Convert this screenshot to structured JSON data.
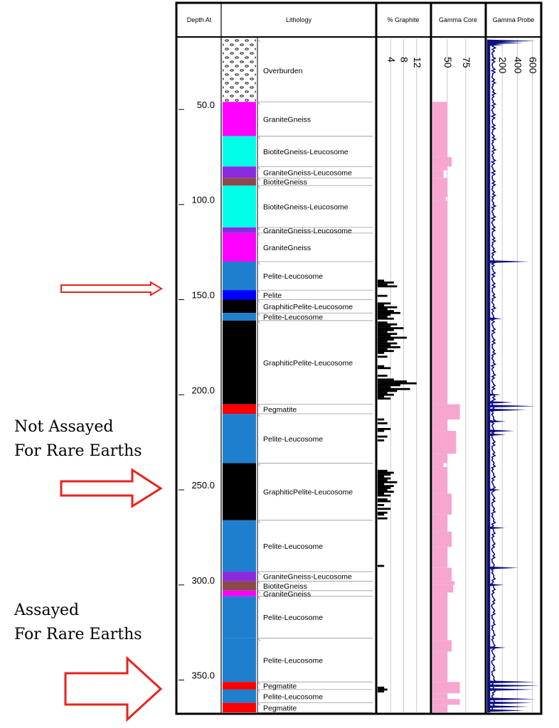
{
  "headers": {
    "depth": "Depth At",
    "lithology": "Lithology",
    "graphite": "% Graphite",
    "gamma_core": "Gamma Core",
    "gamma_probe": "Gamma Probe"
  },
  "annotations": {
    "not_assayed": "Not Assayed\nFor Rare Earths",
    "assayed": "Assayed\nFor Rare Earths"
  },
  "chart_data": {
    "type": "well-log",
    "depth_axis": {
      "range": [
        13,
        367
      ],
      "ticks": [
        50,
        100,
        150,
        200,
        250,
        300,
        350
      ],
      "labels": [
        "50.0",
        "100.0",
        "150.0",
        "200.0",
        "250.0",
        "300.0",
        "350.0"
      ]
    },
    "lithology": [
      {
        "top": 13,
        "base": 46,
        "name": "Overburden",
        "color": "pattern-ovals"
      },
      {
        "top": 46,
        "base": 64,
        "name": "GraniteGneiss",
        "color": "#ff00ff"
      },
      {
        "top": 64,
        "base": 80,
        "name": "BiotiteGneiss-Leucosome",
        "color": "#00ffe6"
      },
      {
        "top": 80,
        "base": 86,
        "name": "GraniteGneiss-Leucosome",
        "color": "#8a2be2"
      },
      {
        "top": 86,
        "base": 90,
        "name": "BiotiteGneiss",
        "color": "#8b4a4a"
      },
      {
        "top": 90,
        "base": 112,
        "name": "BiotiteGneiss-Leucosome",
        "color": "#00ffe6"
      },
      {
        "top": 112,
        "base": 115,
        "name": "GraniteGneiss-Leucosome",
        "color": "#8a2be2"
      },
      {
        "top": 115,
        "base": 130,
        "name": "GraniteGneiss",
        "color": "#ff00ff"
      },
      {
        "top": 130,
        "base": 145,
        "name": "Pelite-Leucosome",
        "color": "#1e7fcf"
      },
      {
        "top": 145,
        "base": 150,
        "name": "Pelite",
        "color": "#0000ff"
      },
      {
        "top": 150,
        "base": 157,
        "name": "GraphiticPelite-Leucosome",
        "color": "#000000"
      },
      {
        "top": 157,
        "base": 161,
        "name": "Pelite-Leucosome",
        "color": "#1e7fcf"
      },
      {
        "top": 161,
        "base": 205,
        "name": "GraphiticPelite-Leucosome",
        "color": "#000000"
      },
      {
        "top": 205,
        "base": 210,
        "name": "Pegmatite",
        "color": "#ff0000"
      },
      {
        "top": 210,
        "base": 236,
        "name": "Pelite-Leucosome",
        "color": "#1e7fcf"
      },
      {
        "top": 236,
        "base": 266,
        "name": "GraphiticPelite-Leucosome",
        "color": "#000000"
      },
      {
        "top": 266,
        "base": 293,
        "name": "Pelite-Leucosome",
        "color": "#1e7fcf"
      },
      {
        "top": 293,
        "base": 298,
        "name": "GraniteGneiss-Leucosome",
        "color": "#8a2be2"
      },
      {
        "top": 298,
        "base": 303,
        "name": "BiotiteGneiss",
        "color": "#8b4a4a"
      },
      {
        "top": 303,
        "base": 306,
        "name": "GraniteGneiss",
        "color": "#ff00ff"
      },
      {
        "top": 306,
        "base": 328,
        "name": "Pelite-Leucosome",
        "color": "#1e7fcf"
      },
      {
        "top": 328,
        "base": 351,
        "name": "Pelite-Leucosome",
        "color": "#1e7fcf"
      },
      {
        "top": 351,
        "base": 355,
        "name": "Pegmatite",
        "color": "#ff0000"
      },
      {
        "top": 355,
        "base": 362,
        "name": "Pelite-Leucosome",
        "color": "#1e7fcf"
      },
      {
        "top": 362,
        "base": 367,
        "name": "Pegmatite",
        "color": "#ff0000"
      }
    ],
    "graphite": {
      "ticks": [
        4,
        8,
        12
      ],
      "range": [
        0,
        16
      ],
      "color": "#000000",
      "samples": [
        [
          140,
          2
        ],
        [
          141,
          5
        ],
        [
          142,
          3
        ],
        [
          143,
          6
        ],
        [
          148,
          3
        ],
        [
          152,
          4
        ],
        [
          153,
          2
        ],
        [
          154,
          6
        ],
        [
          155,
          3
        ],
        [
          156,
          5
        ],
        [
          157,
          7
        ],
        [
          158,
          4
        ],
        [
          159,
          3
        ],
        [
          160,
          5
        ],
        [
          162,
          3
        ],
        [
          163,
          6
        ],
        [
          164,
          4
        ],
        [
          165,
          8
        ],
        [
          166,
          5
        ],
        [
          167,
          3
        ],
        [
          168,
          6
        ],
        [
          169,
          4
        ],
        [
          170,
          9
        ],
        [
          171,
          5
        ],
        [
          172,
          3
        ],
        [
          173,
          6
        ],
        [
          174,
          4
        ],
        [
          175,
          7
        ],
        [
          176,
          3
        ],
        [
          177,
          5
        ],
        [
          178,
          2
        ],
        [
          180,
          3
        ],
        [
          185,
          2
        ],
        [
          186,
          4
        ],
        [
          190,
          3
        ],
        [
          192,
          5
        ],
        [
          193,
          9
        ],
        [
          194,
          12
        ],
        [
          195,
          7
        ],
        [
          196,
          4
        ],
        [
          197,
          10
        ],
        [
          198,
          6
        ],
        [
          199,
          3
        ],
        [
          200,
          5
        ],
        [
          201,
          2
        ],
        [
          202,
          4
        ],
        [
          213,
          2
        ],
        [
          215,
          3
        ],
        [
          218,
          4
        ],
        [
          219,
          2
        ],
        [
          222,
          3
        ],
        [
          224,
          2
        ],
        [
          240,
          3
        ],
        [
          241,
          5
        ],
        [
          242,
          4
        ],
        [
          243,
          2
        ],
        [
          244,
          4
        ],
        [
          245,
          3
        ],
        [
          246,
          6
        ],
        [
          247,
          2
        ],
        [
          248,
          5
        ],
        [
          249,
          4
        ],
        [
          250,
          3
        ],
        [
          251,
          5
        ],
        [
          252,
          2
        ],
        [
          253,
          4
        ],
        [
          255,
          3
        ],
        [
          256,
          4
        ],
        [
          258,
          2
        ],
        [
          260,
          4
        ],
        [
          262,
          3
        ],
        [
          263,
          2
        ],
        [
          265,
          3
        ],
        [
          290,
          2
        ],
        [
          354,
          2
        ],
        [
          355,
          3
        ],
        [
          356,
          2
        ]
      ]
    },
    "gamma_core": {
      "ticks": [
        50,
        75
      ],
      "range": [
        30,
        100
      ],
      "color": "#f7a6cf",
      "steps": [
        [
          46,
          50
        ],
        [
          75,
          56
        ],
        [
          80,
          50
        ],
        [
          82,
          45
        ],
        [
          86,
          50
        ],
        [
          96,
          48
        ],
        [
          98,
          50
        ],
        [
          205,
          67
        ],
        [
          213,
          50
        ],
        [
          219,
          62
        ],
        [
          231,
          50
        ],
        [
          236,
          45
        ],
        [
          238,
          50
        ],
        [
          252,
          56
        ],
        [
          263,
          50
        ],
        [
          272,
          56
        ],
        [
          280,
          50
        ],
        [
          291,
          56
        ],
        [
          298,
          60
        ],
        [
          300,
          58
        ],
        [
          304,
          50
        ],
        [
          329,
          56
        ],
        [
          335,
          50
        ],
        [
          351,
          67
        ],
        [
          357,
          50
        ],
        [
          360,
          67
        ],
        [
          363,
          50
        ]
      ]
    },
    "gamma_probe": {
      "ticks": [
        200,
        400,
        600
      ],
      "range": [
        0,
        700
      ],
      "color": "#0c0f82",
      "spikes": [
        [
          14,
          650
        ],
        [
          15,
          480
        ],
        [
          16,
          220
        ],
        [
          130,
          560
        ],
        [
          160,
          200
        ],
        [
          200,
          180
        ],
        [
          204,
          340
        ],
        [
          206,
          650
        ],
        [
          208,
          520
        ],
        [
          214,
          250
        ],
        [
          219,
          360
        ],
        [
          221,
          250
        ],
        [
          250,
          180
        ],
        [
          270,
          240
        ],
        [
          291,
          420
        ],
        [
          300,
          220
        ],
        [
          333,
          250
        ],
        [
          351,
          650
        ],
        [
          353,
          700
        ],
        [
          355,
          620
        ],
        [
          360,
          650
        ],
        [
          362,
          600
        ],
        [
          364,
          550
        ],
        [
          366,
          500
        ]
      ]
    }
  }
}
